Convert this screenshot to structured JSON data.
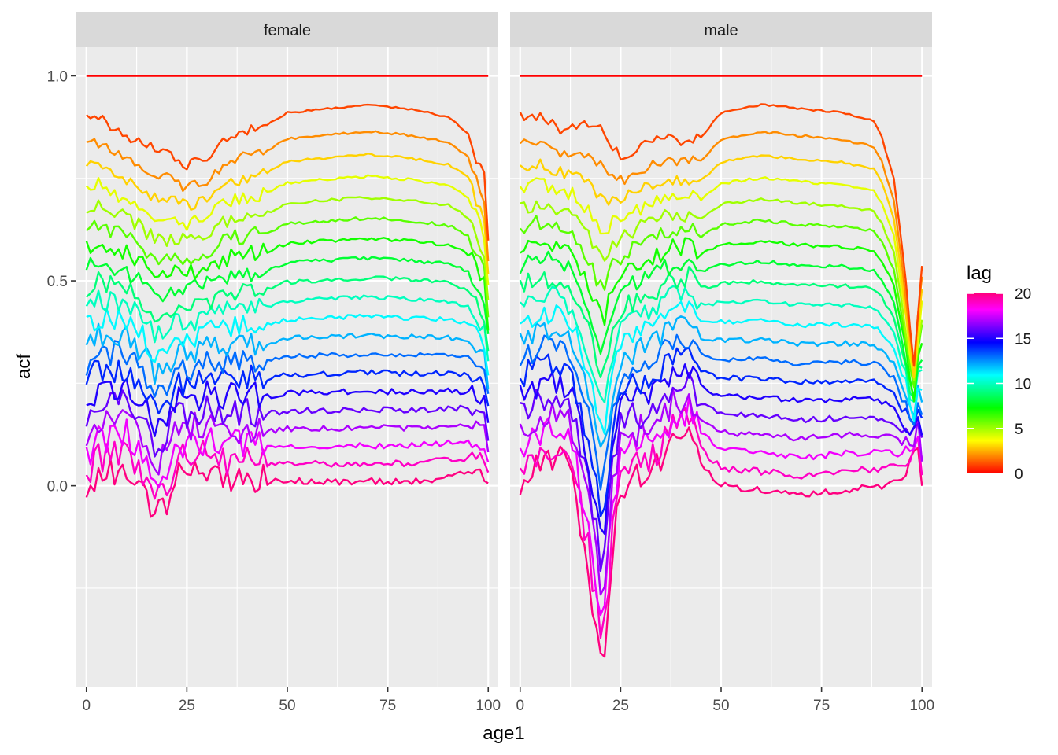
{
  "chart_data": {
    "type": "line",
    "xlabel": "age1",
    "ylabel": "acf",
    "x_ticks": [
      0,
      25,
      50,
      75,
      100
    ],
    "y_ticks": [
      0.0,
      0.5,
      1.0
    ],
    "y_tick_labels": [
      "0.0",
      "0.5",
      "1.0"
    ],
    "xlim": [
      -2.5,
      102.5
    ],
    "ylim": [
      -0.49,
      1.07
    ],
    "grid": true,
    "legend": {
      "title": "lag",
      "type": "colorbar",
      "position": "right",
      "range": [
        0,
        20
      ],
      "ticks": [
        0,
        5,
        10,
        15,
        20
      ],
      "colors": [
        "#ff0000",
        "#ff8000",
        "#ffff00",
        "#80ff00",
        "#00ff00",
        "#00ff80",
        "#00ffff",
        "#0080ff",
        "#0000ff",
        "#8000ff",
        "#ff00ff",
        "#ff0080"
      ]
    },
    "series_note_lags": "21 series, one per lag 0..20, colour mapped from the legend",
    "panels": [
      {
        "name": "female",
        "lag_curves": {
          "0": {
            "key_ages": [
              0,
              100
            ],
            "key_values": [
              1.0,
              1.0
            ]
          },
          "1": {
            "key_ages": [
              0,
              3,
              10,
              15,
              20,
              25,
              30,
              35,
              45,
              50,
              60,
              70,
              80,
              90,
              95,
              97,
              99,
              100
            ],
            "key_values": [
              0.9,
              0.9,
              0.85,
              0.83,
              0.81,
              0.78,
              0.8,
              0.85,
              0.88,
              0.91,
              0.92,
              0.93,
              0.92,
              0.9,
              0.86,
              0.8,
              0.75,
              0.6
            ]
          },
          "20": {
            "key_ages": [
              0,
              3,
              10,
              14,
              16,
              17,
              19,
              22,
              25,
              30,
              35,
              45,
              50,
              60,
              70,
              80,
              90,
              95,
              97,
              99,
              100
            ],
            "key_values": [
              -0.01,
              0.03,
              0.05,
              0.0,
              -0.05,
              -0.07,
              -0.06,
              0.02,
              0.03,
              0.04,
              0.02,
              0.01,
              0.01,
              0.01,
              0.01,
              0.01,
              0.02,
              0.03,
              0.04,
              0.03,
              0.01
            ]
          }
        }
      },
      {
        "name": "male",
        "lag_curves": {
          "0": {
            "key_ages": [
              0,
              100
            ],
            "key_values": [
              1.0,
              1.0
            ]
          },
          "1": {
            "key_ages": [
              0,
              5,
              10,
              15,
              20,
              25,
              30,
              35,
              40,
              45,
              50,
              60,
              70,
              80,
              88,
              90,
              93,
              96,
              98,
              100
            ],
            "key_values": [
              0.9,
              0.9,
              0.87,
              0.88,
              0.87,
              0.8,
              0.83,
              0.85,
              0.84,
              0.85,
              0.91,
              0.93,
              0.92,
              0.91,
              0.89,
              0.85,
              0.75,
              0.5,
              0.3,
              0.55
            ]
          },
          "20": {
            "key_ages": [
              0,
              5,
              10,
              13,
              15,
              17,
              19,
              20,
              21,
              23,
              25,
              30,
              35,
              38,
              42,
              45,
              50,
              60,
              70,
              80,
              90,
              95,
              97,
              99,
              100
            ],
            "key_values": [
              0.0,
              0.05,
              0.06,
              0.02,
              -0.1,
              -0.2,
              -0.35,
              -0.42,
              -0.4,
              -0.15,
              0.0,
              0.02,
              0.05,
              0.1,
              0.12,
              0.05,
              0.0,
              -0.01,
              -0.02,
              -0.01,
              0.0,
              0.02,
              0.06,
              0.1,
              0.0
            ]
          }
        }
      }
    ]
  }
}
